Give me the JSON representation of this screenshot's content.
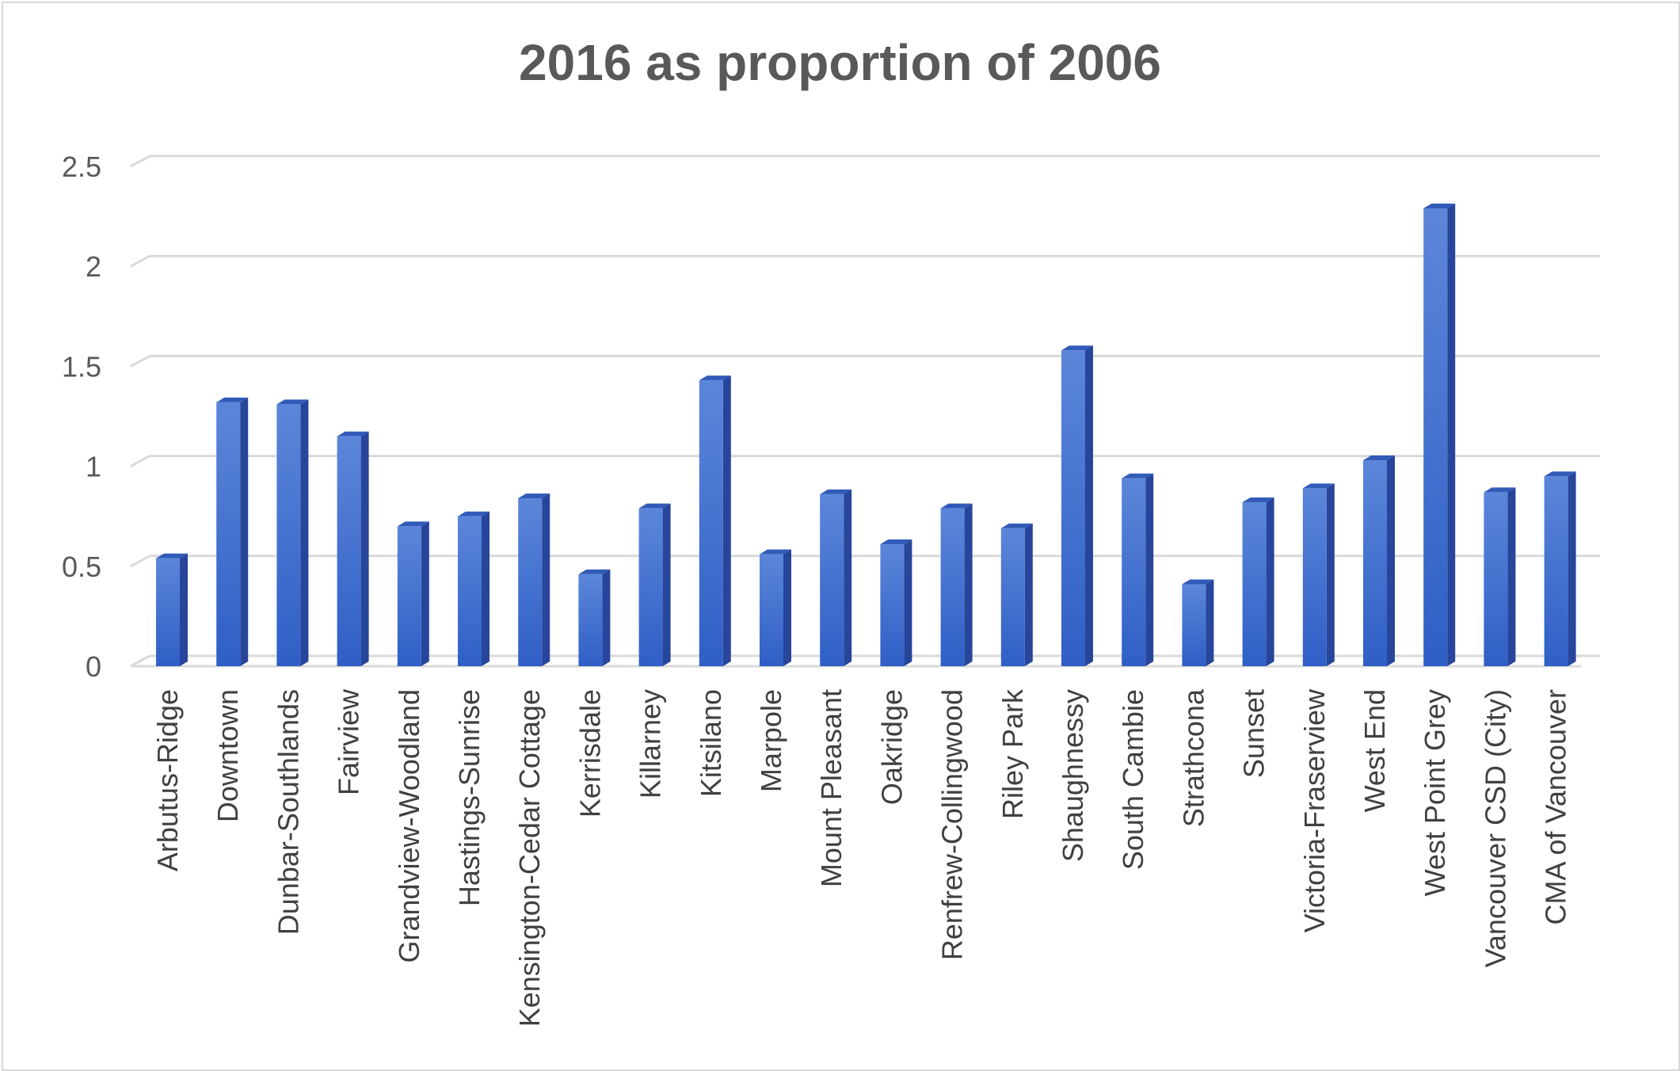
{
  "chart_data": {
    "type": "bar",
    "title": "2016 as proportion of 2006",
    "xlabel": "",
    "ylabel": "",
    "ylim": [
      0,
      2.5
    ],
    "yticks": [
      0,
      0.5,
      1,
      1.5,
      2,
      2.5
    ],
    "ytick_labels": [
      "0",
      "0.5",
      "1",
      "1.5",
      "2",
      "2.5"
    ],
    "grid": true,
    "legend": "none",
    "categories": [
      "Arbutus-Ridge",
      "Downtown",
      "Dunbar-Southlands",
      "Fairview",
      "Grandview-Woodland",
      "Hastings-Sunrise",
      "Kensington-Cedar Cottage",
      "Kerrisdale",
      "Killarney",
      "Kitsilano",
      "Marpole",
      "Mount Pleasant",
      "Oakridge",
      "Renfrew-Collingwood",
      "Riley Park",
      "Shaughnessy",
      "South Cambie",
      "Strathcona",
      "Sunset",
      "Victoria-Fraserview",
      "West End",
      "West Point Grey",
      "Vancouver CSD (City)",
      "CMA of Vancouver"
    ],
    "values": [
      0.54,
      1.32,
      1.31,
      1.15,
      0.7,
      0.75,
      0.84,
      0.46,
      0.79,
      1.43,
      0.56,
      0.86,
      0.61,
      0.79,
      0.69,
      1.58,
      0.94,
      0.41,
      0.82,
      0.89,
      1.03,
      2.29,
      0.87,
      0.95
    ],
    "colors": {
      "bar_front": "#3f70d2",
      "bar_side": "#27459a",
      "bar_top": "#325bb9",
      "grid": "#d9d9d9",
      "text": "#595959"
    }
  }
}
